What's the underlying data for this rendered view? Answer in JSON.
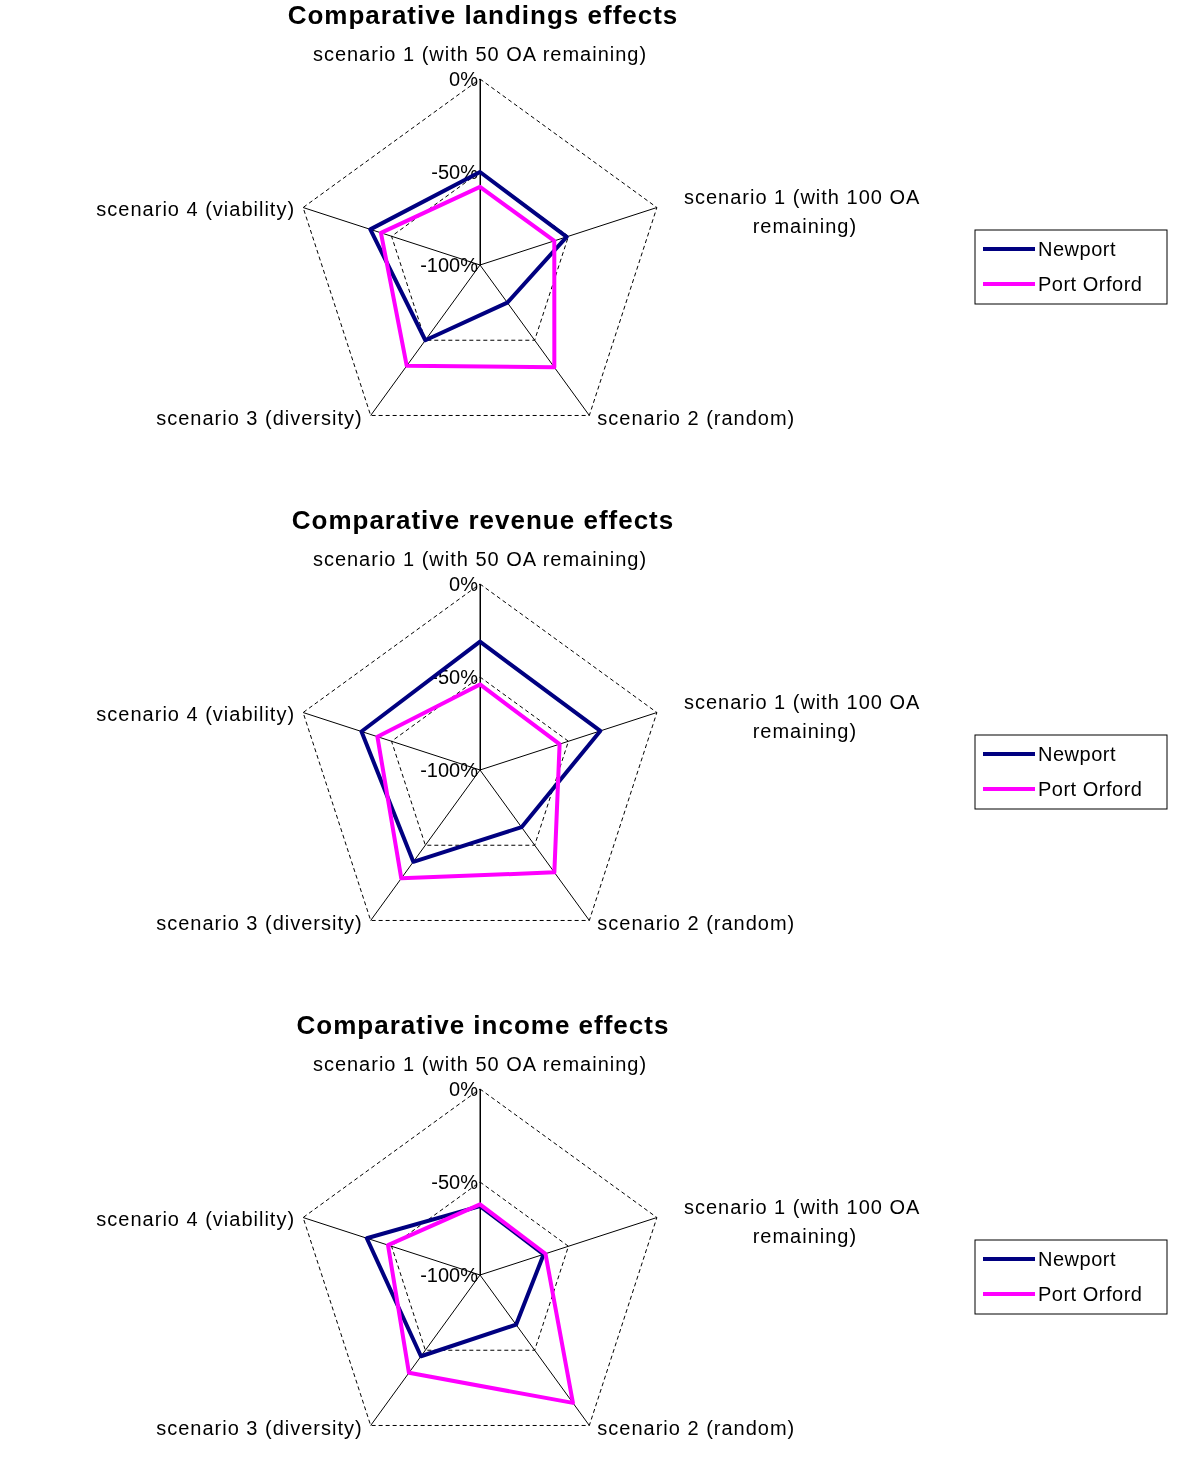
{
  "chart_data": [
    {
      "type": "radar",
      "title": "Comparative landings effects",
      "categories": [
        "scenario 1 (with 50 OA remaining)",
        "scenario 1 (with 100 OA remaining)",
        "scenario 2 (random)",
        "scenario 3 (diversity)",
        "scenario 4 (viability)"
      ],
      "series": [
        {
          "name": "Newport",
          "color": "#000080",
          "values": [
            -50,
            -51,
            -75,
            -50,
            -38
          ]
        },
        {
          "name": "Port Orford",
          "color": "#ff00ff",
          "values": [
            -58,
            -58,
            -32,
            -33,
            -44
          ]
        }
      ],
      "ylim": [
        -100,
        0
      ],
      "yticks": [
        {
          "value": -100,
          "label": "-100%"
        },
        {
          "value": -50,
          "label": "-50%"
        },
        {
          "value": 0,
          "label": "0%"
        }
      ],
      "grid": true,
      "legend": "right",
      "marker": "none",
      "line_style": "solid"
    },
    {
      "type": "radar",
      "title": "Comparative revenue effects",
      "categories": [
        "scenario 1 (with 50 OA remaining)",
        "scenario 1 (with 100 OA remaining)",
        "scenario 2 (random)",
        "scenario 3 (diversity)",
        "scenario 4 (viability)"
      ],
      "series": [
        {
          "name": "Newport",
          "color": "#000080",
          "values": [
            -31,
            -32,
            -62,
            -39,
            -33
          ]
        },
        {
          "name": "Port Orford",
          "color": "#ff00ff",
          "values": [
            -54,
            -55,
            -32,
            -28,
            -42
          ]
        }
      ],
      "ylim": [
        -100,
        0
      ],
      "yticks": [
        {
          "value": -100,
          "label": "-100%"
        },
        {
          "value": -50,
          "label": "-50%"
        },
        {
          "value": 0,
          "label": "0%"
        }
      ],
      "grid": true,
      "legend": "right",
      "marker": "none",
      "line_style": "solid"
    },
    {
      "type": "radar",
      "title": "Comparative income effects",
      "categories": [
        "scenario 1 (with 50 OA remaining)",
        "scenario 1 (with 100 OA remaining)",
        "scenario 2 (random)",
        "scenario 3 (diversity)",
        "scenario 4 (viability)"
      ],
      "series": [
        {
          "name": "Newport",
          "color": "#000080",
          "values": [
            -63,
            -64,
            -67,
            -46,
            -36
          ]
        },
        {
          "name": "Port Orford",
          "color": "#ff00ff",
          "values": [
            -62,
            -63,
            -15,
            -35,
            -48
          ]
        }
      ],
      "ylim": [
        -100,
        0
      ],
      "yticks": [
        {
          "value": -100,
          "label": "-100%"
        },
        {
          "value": -50,
          "label": "-50%"
        },
        {
          "value": 0,
          "label": "0%"
        }
      ],
      "grid": true,
      "legend": "right",
      "marker": "none",
      "line_style": "solid"
    }
  ]
}
